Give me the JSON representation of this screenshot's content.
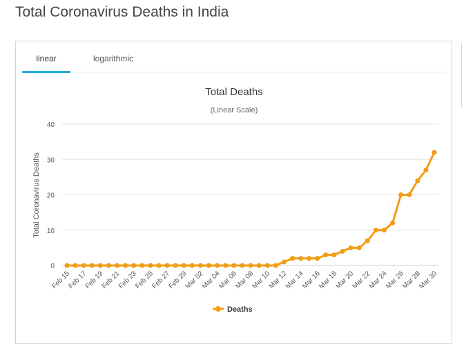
{
  "page": {
    "title": "Total Coronavirus Deaths in India"
  },
  "tabs": {
    "linear": "linear",
    "logarithmic": "logarithmic"
  },
  "colors": {
    "series": "#f39c12",
    "tab_active": "#29abe2",
    "grid": "#e6e6e6"
  },
  "chart_data": {
    "type": "line",
    "title": "Total Deaths",
    "subtitle": "(Linear Scale)",
    "ylabel": "Total Coronavirus Deaths",
    "xlabel": "",
    "ylim": [
      0,
      40
    ],
    "yticks": [
      0,
      10,
      20,
      30,
      40
    ],
    "grid": true,
    "legend": "bottom-center",
    "x": [
      "Feb 15",
      "Feb 16",
      "Feb 17",
      "Feb 18",
      "Feb 19",
      "Feb 20",
      "Feb 21",
      "Feb 22",
      "Feb 23",
      "Feb 24",
      "Feb 25",
      "Feb 26",
      "Feb 27",
      "Feb 28",
      "Feb 29",
      "Mar 01",
      "Mar 02",
      "Mar 03",
      "Mar 04",
      "Mar 05",
      "Mar 06",
      "Mar 07",
      "Mar 08",
      "Mar 09",
      "Mar 10",
      "Mar 11",
      "Mar 12",
      "Mar 13",
      "Mar 14",
      "Mar 15",
      "Mar 16",
      "Mar 17",
      "Mar 18",
      "Mar 19",
      "Mar 20",
      "Mar 21",
      "Mar 22",
      "Mar 23",
      "Mar 24",
      "Mar 25",
      "Mar 26",
      "Mar 27",
      "Mar 28",
      "Mar 29",
      "Mar 30"
    ],
    "xtick_labels": [
      "Feb 15",
      "Feb 17",
      "Feb 19",
      "Feb 21",
      "Feb 23",
      "Feb 25",
      "Feb 27",
      "Feb 29",
      "Mar 02",
      "Mar 04",
      "Mar 06",
      "Mar 08",
      "Mar 10",
      "Mar 12",
      "Mar 14",
      "Mar 16",
      "Mar 18",
      "Mar 20",
      "Mar 22",
      "Mar 24",
      "Mar 26",
      "Mar 28",
      "Mar 30"
    ],
    "series": [
      {
        "name": "Deaths",
        "color": "#f39c12",
        "values": [
          0,
          0,
          0,
          0,
          0,
          0,
          0,
          0,
          0,
          0,
          0,
          0,
          0,
          0,
          0,
          0,
          0,
          0,
          0,
          0,
          0,
          0,
          0,
          0,
          0,
          0,
          1,
          2,
          2,
          2,
          2,
          3,
          3,
          4,
          5,
          5,
          7,
          10,
          10,
          12,
          20,
          20,
          24,
          27,
          32
        ]
      }
    ]
  }
}
